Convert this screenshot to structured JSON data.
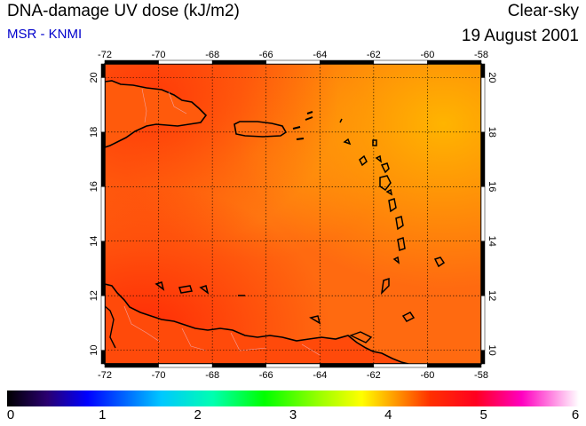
{
  "header": {
    "title": "DNA-damage UV dose (kJ/m2)",
    "source": "MSR - KNMI",
    "condition": "Clear-sky",
    "date": "19 August 2001"
  },
  "map": {
    "lon_ticks": [
      "-72",
      "-70",
      "-68",
      "-66",
      "-64",
      "-62",
      "-60",
      "-58"
    ],
    "lat_ticks": [
      "10",
      "12",
      "14",
      "16",
      "18",
      "20"
    ],
    "lon_range": [
      -72,
      -58
    ],
    "lat_range": [
      9.5,
      20.5
    ],
    "grid": true,
    "field_color": "#ff6a10"
  },
  "colorbar": {
    "labels": [
      "0",
      "1",
      "2",
      "3",
      "4",
      "5",
      "6"
    ],
    "range": [
      0,
      6
    ]
  }
}
